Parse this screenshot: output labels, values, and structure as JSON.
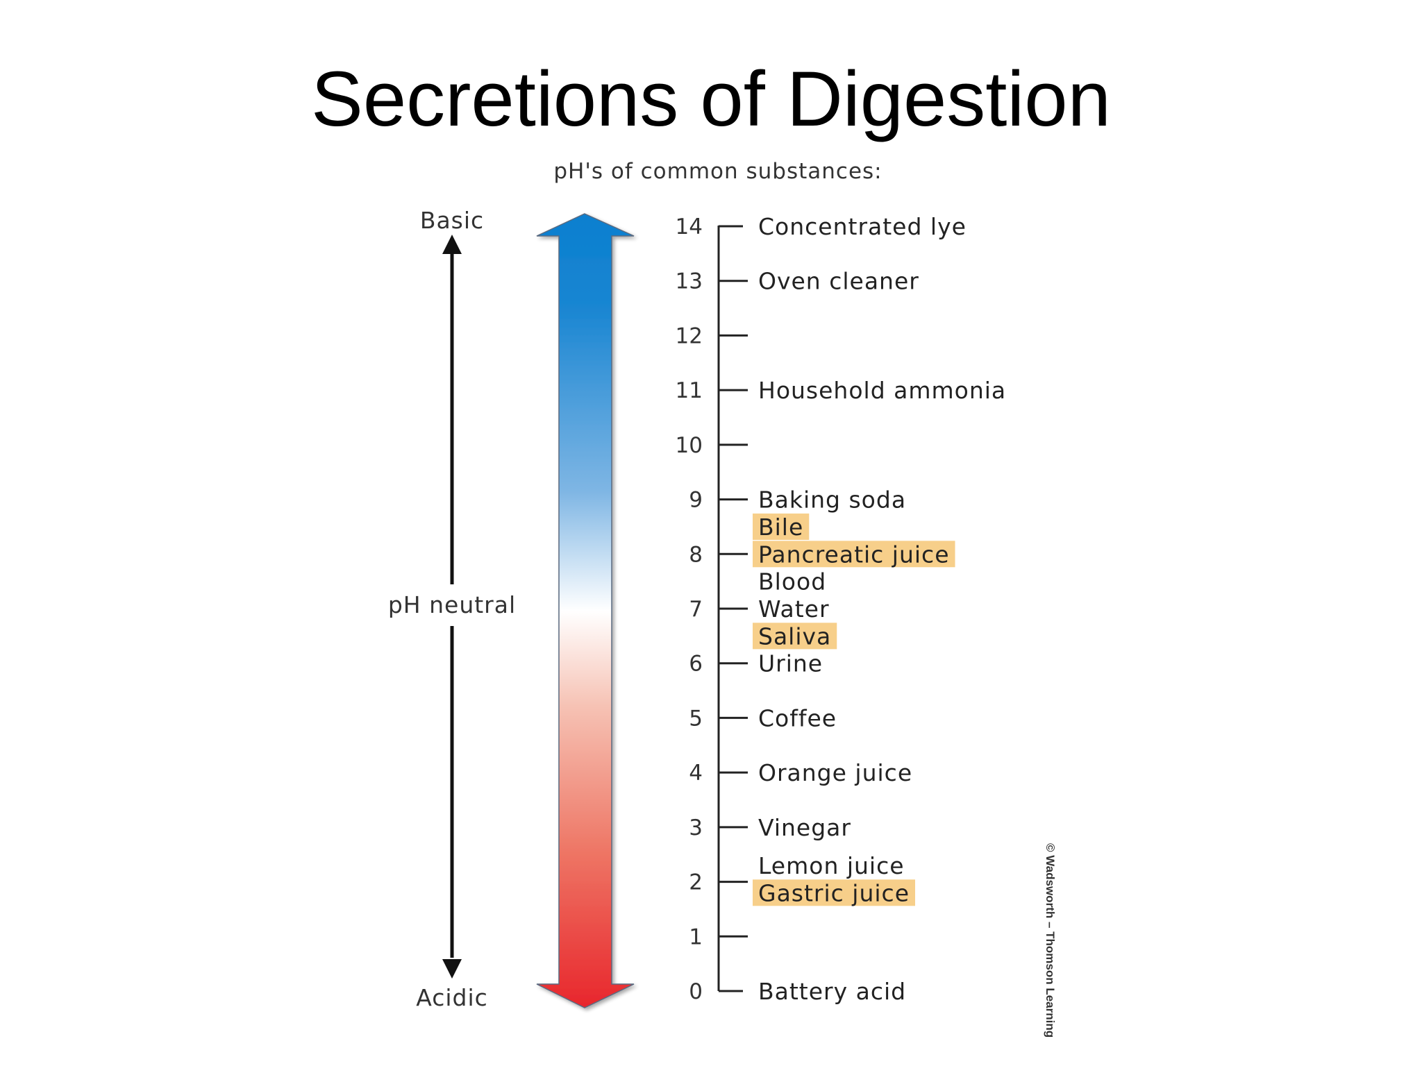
{
  "slide": {
    "title": "Secretions of Digestion"
  },
  "figure": {
    "subtitle": "pH's of common substances:",
    "basic_label": "Basic",
    "neutral_label": "pH neutral",
    "acidic_label": "Acidic",
    "credit": "© Wadsworth – Thomson Learning",
    "colors": {
      "basic": "#0a7fcf",
      "neutral": "#ffffff",
      "acidic": "#e8262c",
      "highlight": "#f7cf8a"
    },
    "scale_values": [
      14,
      13,
      12,
      11,
      10,
      9,
      8,
      7,
      6,
      5,
      4,
      3,
      2,
      1,
      0
    ],
    "substances": [
      {
        "name": "Concentrated lye",
        "ph": 14,
        "highlighted": false
      },
      {
        "name": "Oven cleaner",
        "ph": 13,
        "highlighted": false
      },
      {
        "name": "Household ammonia",
        "ph": 11,
        "highlighted": false
      },
      {
        "name": "Baking soda",
        "ph": 9,
        "highlighted": false
      },
      {
        "name": "Bile",
        "ph": 8.5,
        "highlighted": true
      },
      {
        "name": "Pancreatic juice",
        "ph": 8,
        "highlighted": true
      },
      {
        "name": "Blood",
        "ph": 7.5,
        "highlighted": false
      },
      {
        "name": "Water",
        "ph": 7,
        "highlighted": false
      },
      {
        "name": "Saliva",
        "ph": 6.5,
        "highlighted": true
      },
      {
        "name": "Urine",
        "ph": 6,
        "highlighted": false
      },
      {
        "name": "Coffee",
        "ph": 5,
        "highlighted": false
      },
      {
        "name": "Orange juice",
        "ph": 4,
        "highlighted": false
      },
      {
        "name": "Vinegar",
        "ph": 3,
        "highlighted": false
      },
      {
        "name": "Lemon juice",
        "ph": 2.3,
        "highlighted": false
      },
      {
        "name": "Gastric juice",
        "ph": 1.8,
        "highlighted": true
      },
      {
        "name": "Battery acid",
        "ph": 0,
        "highlighted": false
      }
    ]
  }
}
